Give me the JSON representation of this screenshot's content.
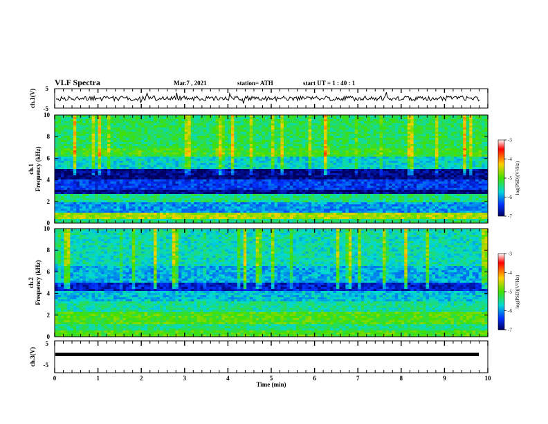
{
  "header": {
    "title": "VLF Spectra",
    "date": "Mar.7  , 2021",
    "station": "station= ATH",
    "start": "start  UT  =   1 : 40 : 1"
  },
  "chart_data": [
    {
      "type": "line",
      "panel": "ch1-waveform",
      "ylabel": "ch.1(V)",
      "yticks": [
        "5",
        "-5"
      ],
      "ylim": [
        -5,
        5
      ],
      "xlim": [
        0,
        10
      ],
      "series": [
        {
          "color": "#000000",
          "level": 0
        }
      ]
    },
    {
      "type": "heatmap",
      "panel": "ch1-spectrogram",
      "ylabel": "ch.1",
      "ylabel2": "Frequency  (kHz)",
      "yticks": [
        "0",
        "2",
        "4",
        "6",
        "8",
        "10"
      ],
      "ylim": [
        0,
        10
      ],
      "xlim": [
        0,
        10
      ],
      "colorbar": {
        "ticks": [
          "-3",
          "-4",
          "-5",
          "-6",
          "-7"
        ],
        "label": "log(PSD)(V²/Hz)",
        "range": [
          -7,
          -3
        ]
      }
    },
    {
      "type": "heatmap",
      "panel": "ch2-spectrogram",
      "ylabel": "ch.2",
      "ylabel2": "Frequency  (kHz)",
      "yticks": [
        "0",
        "2",
        "4",
        "6",
        "8",
        "10"
      ],
      "ylim": [
        0,
        10
      ],
      "xlim": [
        0,
        10
      ],
      "colorbar": {
        "ticks": [
          "-3",
          "-4",
          "-5",
          "-6",
          "-7"
        ],
        "label": "log(PSD)(V²/Hz)",
        "range": [
          -7,
          -3
        ]
      }
    },
    {
      "type": "line",
      "panel": "ch3-waveform",
      "ylabel": "ch.3(V)",
      "yticks": [
        "5",
        "-5"
      ],
      "ylim": [
        -5,
        5
      ],
      "xlim": [
        0,
        10
      ],
      "series": [
        {
          "color": "#000000",
          "level": -0.5
        }
      ]
    }
  ],
  "xaxis": {
    "label": "Time  (min)",
    "ticks": [
      "0",
      "1",
      "2",
      "3",
      "4",
      "5",
      "6",
      "7",
      "8",
      "9",
      "10"
    ]
  }
}
